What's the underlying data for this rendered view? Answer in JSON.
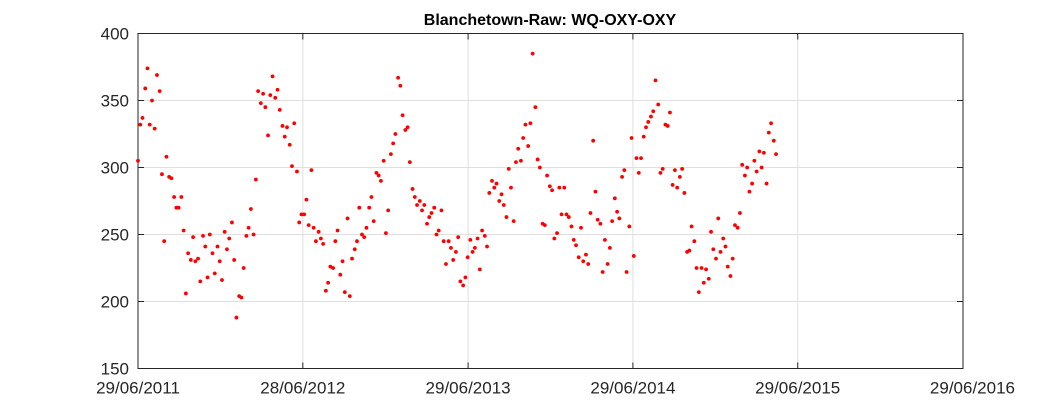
{
  "chart_data": {
    "type": "scatter",
    "title": "Blanchetown-Raw: WQ-OXY-OXY",
    "xlabel": "",
    "ylabel": "",
    "ylim": [
      150,
      400
    ],
    "y_ticks": [
      150,
      200,
      250,
      300,
      350,
      400
    ],
    "xlim": [
      "2011-06-29",
      "2016-06-29"
    ],
    "x_ticks": [
      {
        "date": "2011-06-29",
        "label": "29/06/2011"
      },
      {
        "date": "2012-06-28",
        "label": "28/06/2012"
      },
      {
        "date": "2013-06-29",
        "label": "29/06/2013"
      },
      {
        "date": "2014-06-29",
        "label": "29/06/2014"
      },
      {
        "date": "2015-06-29",
        "label": "29/06/2015"
      },
      {
        "date": "2016-06-29",
        "label": "29/06/2016"
      }
    ],
    "grid": true,
    "marker_color": "#ff0000",
    "series": [
      {
        "points": [
          [
            "2011-06-29",
            305
          ],
          [
            "2011-07-04",
            332
          ],
          [
            "2011-07-09",
            337
          ],
          [
            "2011-07-15",
            359
          ],
          [
            "2011-07-20",
            374
          ],
          [
            "2011-07-25",
            332
          ],
          [
            "2011-07-30",
            350
          ],
          [
            "2011-08-05",
            329
          ],
          [
            "2011-08-10",
            369
          ],
          [
            "2011-08-16",
            357
          ],
          [
            "2011-08-21",
            295
          ],
          [
            "2011-08-26",
            245
          ],
          [
            "2011-08-31",
            308
          ],
          [
            "2011-09-06",
            293
          ],
          [
            "2011-09-11",
            292
          ],
          [
            "2011-09-17",
            278
          ],
          [
            "2011-09-22",
            270
          ],
          [
            "2011-09-27",
            270
          ],
          [
            "2011-10-03",
            278
          ],
          [
            "2011-10-08",
            253
          ],
          [
            "2011-10-13",
            206
          ],
          [
            "2011-10-18",
            236
          ],
          [
            "2011-10-24",
            231
          ],
          [
            "2011-10-29",
            248
          ],
          [
            "2011-11-03",
            230
          ],
          [
            "2011-11-09",
            232
          ],
          [
            "2011-11-14",
            215
          ],
          [
            "2011-11-20",
            249
          ],
          [
            "2011-11-25",
            241
          ],
          [
            "2011-11-30",
            218
          ],
          [
            "2011-12-05",
            250
          ],
          [
            "2011-12-11",
            236
          ],
          [
            "2011-12-16",
            221
          ],
          [
            "2011-12-22",
            241
          ],
          [
            "2011-12-27",
            230
          ],
          [
            "2012-01-01",
            216
          ],
          [
            "2012-01-07",
            252
          ],
          [
            "2012-01-12",
            239
          ],
          [
            "2012-01-17",
            247
          ],
          [
            "2012-01-23",
            259
          ],
          [
            "2012-01-28",
            231
          ],
          [
            "2012-02-02",
            188
          ],
          [
            "2012-02-08",
            204
          ],
          [
            "2012-02-13",
            203
          ],
          [
            "2012-02-18",
            225
          ],
          [
            "2012-02-24",
            249
          ],
          [
            "2012-02-29",
            255
          ],
          [
            "2012-03-05",
            269
          ],
          [
            "2012-03-11",
            250
          ],
          [
            "2012-03-16",
            291
          ],
          [
            "2012-03-21",
            357
          ],
          [
            "2012-03-27",
            348
          ],
          [
            "2012-04-01",
            355
          ],
          [
            "2012-04-06",
            345
          ],
          [
            "2012-04-12",
            324
          ],
          [
            "2012-04-17",
            354
          ],
          [
            "2012-04-22",
            368
          ],
          [
            "2012-04-28",
            352
          ],
          [
            "2012-05-03",
            358
          ],
          [
            "2012-05-08",
            343
          ],
          [
            "2012-05-14",
            331
          ],
          [
            "2012-05-19",
            323
          ],
          [
            "2012-05-24",
            330
          ],
          [
            "2012-05-30",
            317
          ],
          [
            "2012-06-04",
            301
          ],
          [
            "2012-06-09",
            333
          ],
          [
            "2012-06-15",
            297
          ],
          [
            "2012-06-20",
            259
          ],
          [
            "2012-06-25",
            265
          ],
          [
            "2012-07-01",
            265
          ],
          [
            "2012-07-06",
            276
          ],
          [
            "2012-07-11",
            257
          ],
          [
            "2012-07-17",
            298
          ],
          [
            "2012-07-22",
            255
          ],
          [
            "2012-07-27",
            245
          ],
          [
            "2012-08-02",
            252
          ],
          [
            "2012-08-07",
            247
          ],
          [
            "2012-08-12",
            243
          ],
          [
            "2012-08-18",
            208
          ],
          [
            "2012-08-23",
            214
          ],
          [
            "2012-08-28",
            226
          ],
          [
            "2012-09-03",
            225
          ],
          [
            "2012-09-08",
            245
          ],
          [
            "2012-09-13",
            253
          ],
          [
            "2012-09-19",
            220
          ],
          [
            "2012-09-24",
            230
          ],
          [
            "2012-09-29",
            207
          ],
          [
            "2012-10-05",
            262
          ],
          [
            "2012-10-10",
            204
          ],
          [
            "2012-10-15",
            232
          ],
          [
            "2012-10-21",
            239
          ],
          [
            "2012-10-26",
            245
          ],
          [
            "2012-10-31",
            270
          ],
          [
            "2012-11-06",
            250
          ],
          [
            "2012-11-11",
            248
          ],
          [
            "2012-11-16",
            255
          ],
          [
            "2012-11-22",
            270
          ],
          [
            "2012-11-27",
            278
          ],
          [
            "2012-12-02",
            260
          ],
          [
            "2012-12-08",
            296
          ],
          [
            "2012-12-13",
            294
          ],
          [
            "2012-12-18",
            290
          ],
          [
            "2012-12-24",
            305
          ],
          [
            "2012-12-29",
            251
          ],
          [
            "2013-01-03",
            268
          ],
          [
            "2013-01-09",
            310
          ],
          [
            "2013-01-14",
            318
          ],
          [
            "2013-01-19",
            325
          ],
          [
            "2013-01-25",
            367
          ],
          [
            "2013-01-30",
            361
          ],
          [
            "2013-02-04",
            339
          ],
          [
            "2013-02-10",
            328
          ],
          [
            "2013-02-15",
            330
          ],
          [
            "2013-02-20",
            304
          ],
          [
            "2013-02-26",
            284
          ],
          [
            "2013-03-03",
            278
          ],
          [
            "2013-03-08",
            272
          ],
          [
            "2013-03-14",
            275
          ],
          [
            "2013-03-19",
            268
          ],
          [
            "2013-03-24",
            272
          ],
          [
            "2013-03-30",
            258
          ],
          [
            "2013-04-04",
            263
          ],
          [
            "2013-04-09",
            266
          ],
          [
            "2013-04-15",
            270
          ],
          [
            "2013-04-20",
            250
          ],
          [
            "2013-04-25",
            253
          ],
          [
            "2013-05-01",
            268
          ],
          [
            "2013-05-06",
            245
          ],
          [
            "2013-05-11",
            228
          ],
          [
            "2013-05-17",
            245
          ],
          [
            "2013-05-22",
            240
          ],
          [
            "2013-05-27",
            231
          ],
          [
            "2013-06-02",
            237
          ],
          [
            "2013-06-07",
            248
          ],
          [
            "2013-06-12",
            215
          ],
          [
            "2013-06-18",
            212
          ],
          [
            "2013-06-23",
            218
          ],
          [
            "2013-06-28",
            233
          ],
          [
            "2013-07-04",
            246
          ],
          [
            "2013-07-09",
            237
          ],
          [
            "2013-07-14",
            240
          ],
          [
            "2013-07-20",
            247
          ],
          [
            "2013-07-25",
            224
          ],
          [
            "2013-07-30",
            253
          ],
          [
            "2013-08-05",
            249
          ],
          [
            "2013-08-10",
            241
          ],
          [
            "2013-08-15",
            281
          ],
          [
            "2013-08-21",
            290
          ],
          [
            "2013-08-26",
            285
          ],
          [
            "2013-08-31",
            288
          ],
          [
            "2013-09-06",
            275
          ],
          [
            "2013-09-11",
            280
          ],
          [
            "2013-09-16",
            272
          ],
          [
            "2013-09-22",
            263
          ],
          [
            "2013-09-27",
            299
          ],
          [
            "2013-10-02",
            285
          ],
          [
            "2013-10-08",
            260
          ],
          [
            "2013-10-13",
            304
          ],
          [
            "2013-10-18",
            314
          ],
          [
            "2013-10-24",
            305
          ],
          [
            "2013-10-29",
            322
          ],
          [
            "2013-11-03",
            332
          ],
          [
            "2013-11-09",
            316
          ],
          [
            "2013-11-14",
            333
          ],
          [
            "2013-11-19",
            385
          ],
          [
            "2013-11-25",
            345
          ],
          [
            "2013-11-30",
            306
          ],
          [
            "2013-12-05",
            300
          ],
          [
            "2013-12-11",
            258
          ],
          [
            "2013-12-16",
            257
          ],
          [
            "2013-12-21",
            294
          ],
          [
            "2013-12-27",
            286
          ],
          [
            "2014-01-01",
            283
          ],
          [
            "2014-01-06",
            247
          ],
          [
            "2014-01-12",
            251
          ],
          [
            "2014-01-17",
            285
          ],
          [
            "2014-01-22",
            265
          ],
          [
            "2014-01-28",
            285
          ],
          [
            "2014-02-02",
            265
          ],
          [
            "2014-02-07",
            263
          ],
          [
            "2014-02-13",
            256
          ],
          [
            "2014-02-18",
            246
          ],
          [
            "2014-02-23",
            242
          ],
          [
            "2014-03-01",
            233
          ],
          [
            "2014-03-06",
            255
          ],
          [
            "2014-03-11",
            230
          ],
          [
            "2014-03-17",
            235
          ],
          [
            "2014-03-22",
            228
          ],
          [
            "2014-03-27",
            266
          ],
          [
            "2014-04-02",
            320
          ],
          [
            "2014-04-07",
            282
          ],
          [
            "2014-04-12",
            261
          ],
          [
            "2014-04-18",
            258
          ],
          [
            "2014-04-23",
            222
          ],
          [
            "2014-04-28",
            246
          ],
          [
            "2014-05-04",
            228
          ],
          [
            "2014-05-09",
            240
          ],
          [
            "2014-05-14",
            260
          ],
          [
            "2014-05-20",
            277
          ],
          [
            "2014-05-25",
            267
          ],
          [
            "2014-05-30",
            262
          ],
          [
            "2014-06-05",
            293
          ],
          [
            "2014-06-10",
            298
          ],
          [
            "2014-06-15",
            222
          ],
          [
            "2014-06-21",
            256
          ],
          [
            "2014-06-26",
            322
          ],
          [
            "2014-07-01",
            234
          ],
          [
            "2014-07-07",
            307
          ],
          [
            "2014-07-12",
            296
          ],
          [
            "2014-07-17",
            307
          ],
          [
            "2014-07-23",
            323
          ],
          [
            "2014-07-28",
            330
          ],
          [
            "2014-08-02",
            334
          ],
          [
            "2014-08-08",
            338
          ],
          [
            "2014-08-13",
            342
          ],
          [
            "2014-08-18",
            365
          ],
          [
            "2014-08-24",
            347
          ],
          [
            "2014-08-29",
            296
          ],
          [
            "2014-09-03",
            299
          ],
          [
            "2014-09-09",
            332
          ],
          [
            "2014-09-14",
            331
          ],
          [
            "2014-09-19",
            341
          ],
          [
            "2014-09-25",
            287
          ],
          [
            "2014-09-30",
            298
          ],
          [
            "2014-10-05",
            285
          ],
          [
            "2014-10-11",
            293
          ],
          [
            "2014-10-16",
            299
          ],
          [
            "2014-10-21",
            281
          ],
          [
            "2014-10-27",
            237
          ],
          [
            "2014-11-01",
            238
          ],
          [
            "2014-11-06",
            256
          ],
          [
            "2014-11-12",
            245
          ],
          [
            "2014-11-17",
            225
          ],
          [
            "2014-11-22",
            207
          ],
          [
            "2014-11-28",
            225
          ],
          [
            "2014-12-03",
            214
          ],
          [
            "2014-12-08",
            224
          ],
          [
            "2014-12-14",
            217
          ],
          [
            "2014-12-19",
            252
          ],
          [
            "2014-12-24",
            239
          ],
          [
            "2014-12-30",
            232
          ],
          [
            "2015-01-04",
            262
          ],
          [
            "2015-01-09",
            237
          ],
          [
            "2015-01-15",
            247
          ],
          [
            "2015-01-20",
            241
          ],
          [
            "2015-01-25",
            226
          ],
          [
            "2015-01-31",
            219
          ],
          [
            "2015-02-05",
            232
          ],
          [
            "2015-02-10",
            257
          ],
          [
            "2015-02-16",
            255
          ],
          [
            "2015-02-21",
            266
          ],
          [
            "2015-02-26",
            302
          ],
          [
            "2015-03-04",
            294
          ],
          [
            "2015-03-09",
            300
          ],
          [
            "2015-03-14",
            282
          ],
          [
            "2015-03-20",
            288
          ],
          [
            "2015-03-25",
            305
          ],
          [
            "2015-03-30",
            297
          ],
          [
            "2015-04-05",
            312
          ],
          [
            "2015-04-10",
            300
          ],
          [
            "2015-04-15",
            311
          ],
          [
            "2015-04-21",
            288
          ],
          [
            "2015-04-26",
            326
          ],
          [
            "2015-05-01",
            333
          ],
          [
            "2015-05-07",
            320
          ],
          [
            "2015-05-12",
            310
          ]
        ]
      }
    ]
  }
}
